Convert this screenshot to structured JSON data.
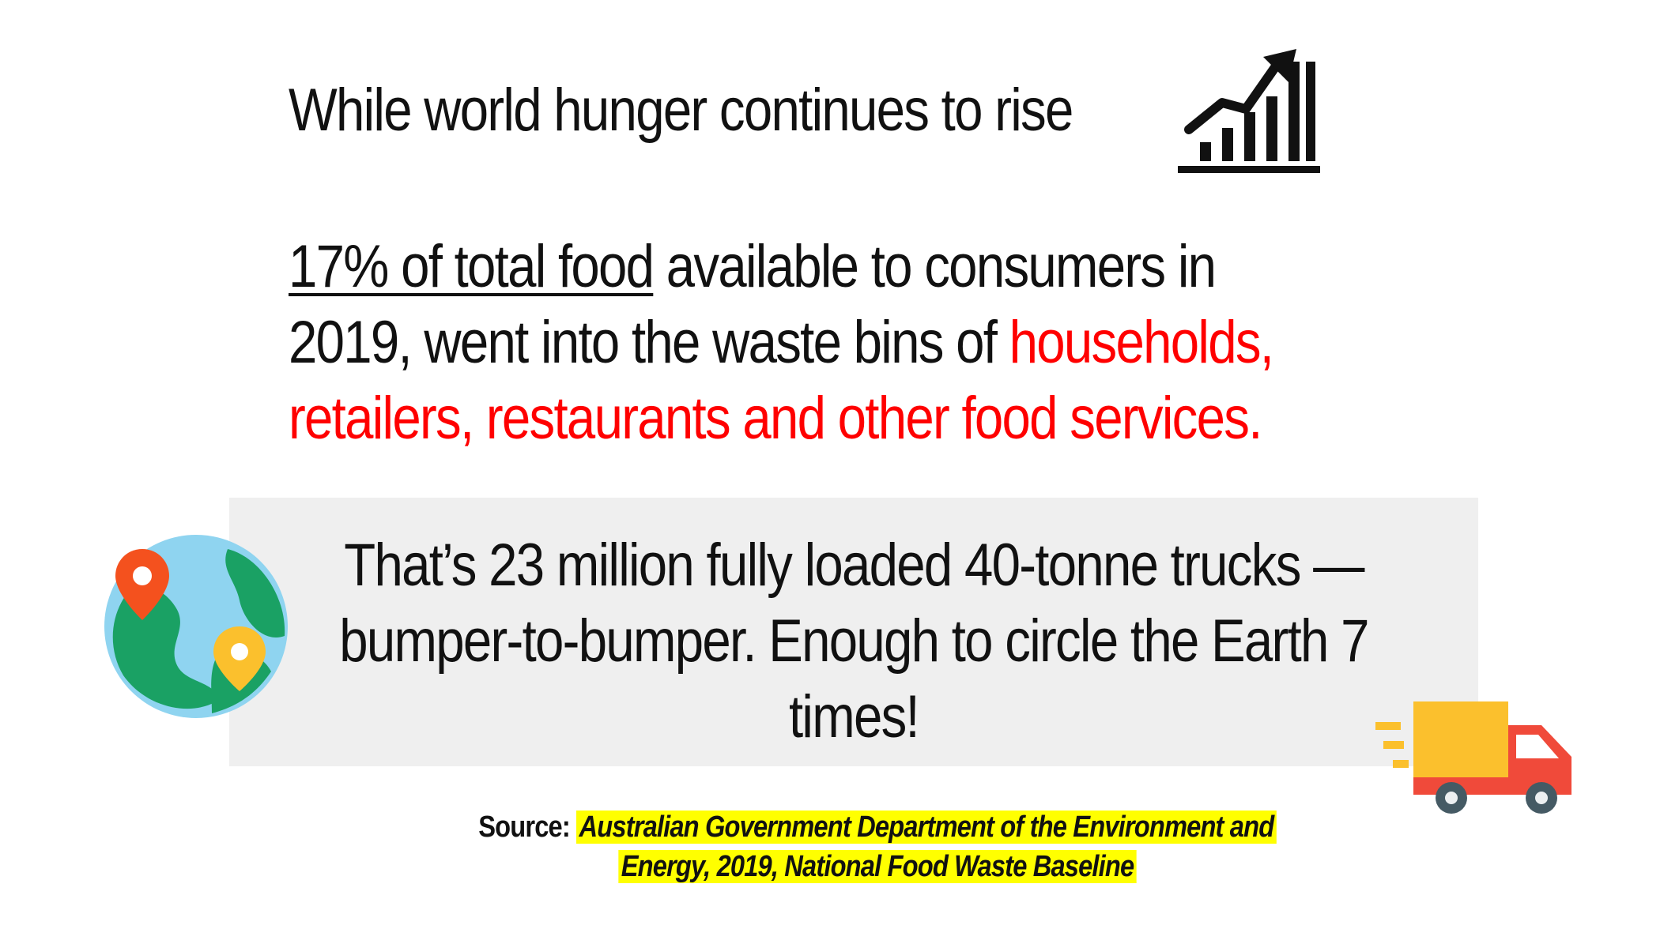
{
  "headline": "While world hunger continues to rise",
  "stat": {
    "underlined": "17% of total food",
    "line1_rest": " available to consumers in",
    "line2_plain": "2019, went into the waste bins of ",
    "line2_red": "households,",
    "line3_red": "retailers, restaurants and other food services."
  },
  "callout": {
    "line1": "That’s 23 million fully loaded 40-tonne trucks —",
    "line2": "bumper-to-bumper. Enough to circle the Earth 7",
    "line3": "times!"
  },
  "source": {
    "label": "Source:",
    "citation_line1": "Australian Government Department of the Environment and",
    "citation_line2": "Energy, 2019, National Food Waste Baseline"
  },
  "icons": {
    "chart": "trending-up-chart-icon",
    "globe": "globe-with-location-pins-icon",
    "truck": "fast-delivery-truck-icon"
  },
  "colors": {
    "highlight_text": "#ff0000",
    "panel_bg": "#efefef",
    "source_highlight": "#ffff00",
    "globe_ocean": "#8fd4f0",
    "globe_land": "#1aa164",
    "pin_red": "#f4511e",
    "pin_yellow": "#fbc02d",
    "truck_cargo": "#fbc02d",
    "truck_cab": "#f04a3a"
  }
}
